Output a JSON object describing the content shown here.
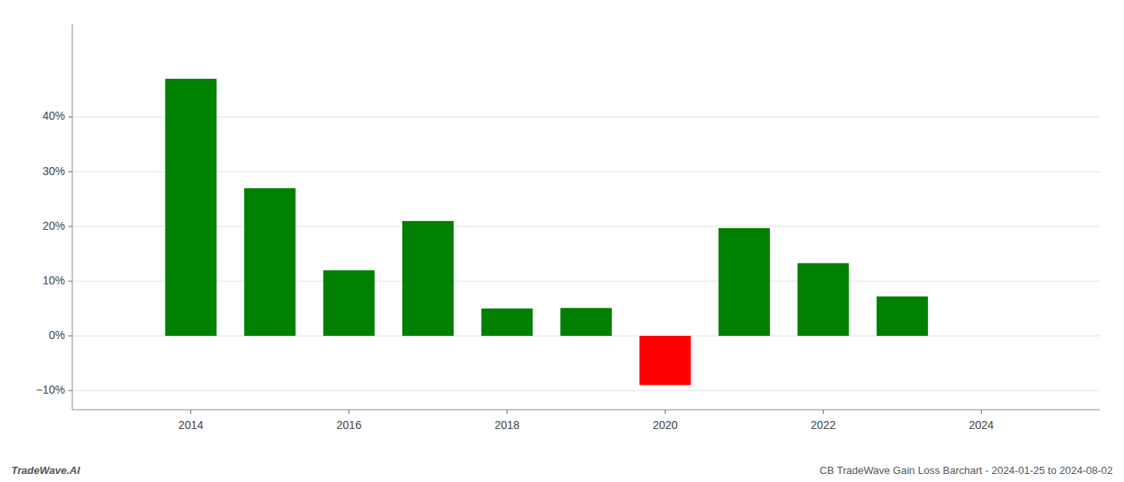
{
  "chart_data": {
    "type": "bar",
    "title": "CB TradeWave Gain Loss Barchart - 2024-01-25 to 2024-08-02",
    "annotations": [
      "TradeWave.AI"
    ],
    "x": [
      2014,
      2015,
      2016,
      2017,
      2018,
      2019,
      2020,
      2021,
      2022,
      2023
    ],
    "values": [
      0.47,
      0.27,
      0.12,
      0.21,
      0.05,
      0.051,
      -0.09,
      0.197,
      0.133,
      0.072
    ],
    "colors": [
      "#008000",
      "#008000",
      "#008000",
      "#008000",
      "#008000",
      "#008000",
      "#ff0000",
      "#008000",
      "#008000",
      "#008000"
    ],
    "xlim": [
      2012.5,
      2025.5
    ],
    "xticks": [
      2014,
      2016,
      2018,
      2020,
      2022,
      2024
    ],
    "ylim": [
      -0.135,
      0.57
    ],
    "yticks": [
      {
        "value": -0.1,
        "label": "−10%"
      },
      {
        "value": 0.0,
        "label": "0%"
      },
      {
        "value": 0.1,
        "label": "10%"
      },
      {
        "value": 0.2,
        "label": "20%"
      },
      {
        "value": 0.3,
        "label": "30%"
      },
      {
        "value": 0.4,
        "label": "40%"
      }
    ],
    "grid": true
  }
}
